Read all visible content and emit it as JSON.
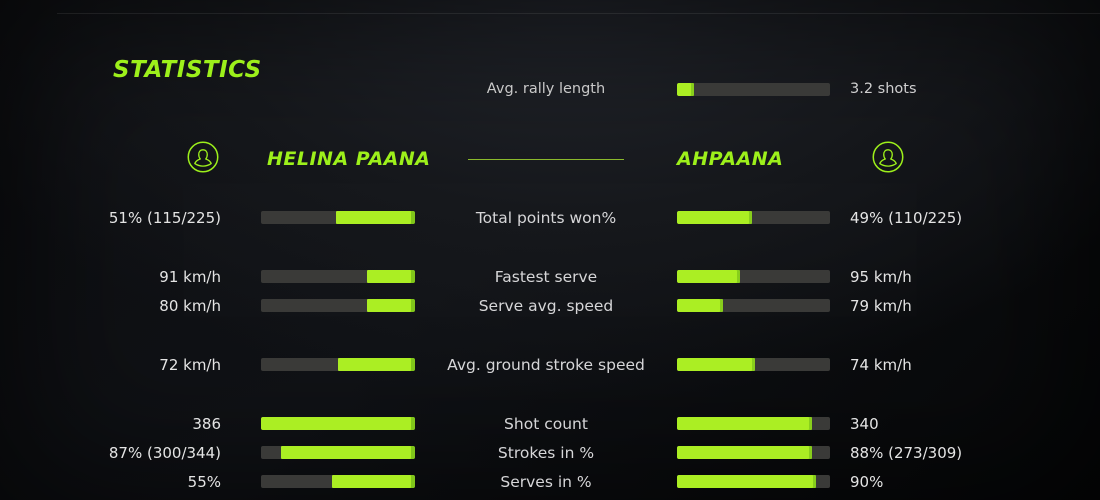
{
  "title": "STATISTICS",
  "colors": {
    "accent": "#9df01b",
    "bar_fill": "#abee23",
    "bar_track": "#3a3a38",
    "divider": "#8ab92c"
  },
  "rally": {
    "label": "Avg. rally length",
    "value": "3.2 shots",
    "percent": 11
  },
  "players": {
    "left": {
      "name": "HELINA PAANA",
      "icon": "person-icon"
    },
    "right": {
      "name": "AHPAANA",
      "icon": "person-icon"
    }
  },
  "stats": [
    {
      "label": "Total points won%",
      "left": {
        "value": "51% (115/225)",
        "percent": 51
      },
      "right": {
        "value": "49% (110/225)",
        "percent": 49
      }
    },
    {
      "label": "Fastest serve",
      "left": {
        "value": "91 km/h",
        "percent": 31
      },
      "right": {
        "value": "95 km/h",
        "percent": 41
      }
    },
    {
      "label": "Serve avg. speed",
      "left": {
        "value": "80 km/h",
        "percent": 31
      },
      "right": {
        "value": "79 km/h",
        "percent": 30
      }
    },
    {
      "label": "Avg. ground stroke speed",
      "left": {
        "value": "72 km/h",
        "percent": 50
      },
      "right": {
        "value": "74 km/h",
        "percent": 51
      }
    },
    {
      "label": "Shot count",
      "left": {
        "value": "386",
        "percent": 100
      },
      "right": {
        "value": "340",
        "percent": 88
      }
    },
    {
      "label": "Strokes in %",
      "left": {
        "value": "87% (300/344)",
        "percent": 87
      },
      "right": {
        "value": "88% (273/309)",
        "percent": 88
      }
    },
    {
      "label": "Serves in %",
      "left": {
        "value": "55%",
        "percent": 54
      },
      "right": {
        "value": "90%",
        "percent": 91
      }
    }
  ],
  "chart_data": {
    "type": "bar",
    "title": "STATISTICS",
    "categories": [
      "Avg. rally length",
      "Total points won%",
      "Fastest serve",
      "Serve avg. speed",
      "Avg. ground stroke speed",
      "Shot count",
      "Strokes in %",
      "Serves in %"
    ],
    "series": [
      {
        "name": "HELINA PAANA",
        "values": [
          null,
          "51% (115/225)",
          "91 km/h",
          "80 km/h",
          "72 km/h",
          "386",
          "87% (300/344)",
          "55%"
        ]
      },
      {
        "name": "AHPAANA",
        "values": [
          "3.2 shots",
          "49% (110/225)",
          "95 km/h",
          "79 km/h",
          "74 km/h",
          "340",
          "88% (273/309)",
          "90%"
        ]
      }
    ],
    "legend_position": "top",
    "grid": false
  }
}
